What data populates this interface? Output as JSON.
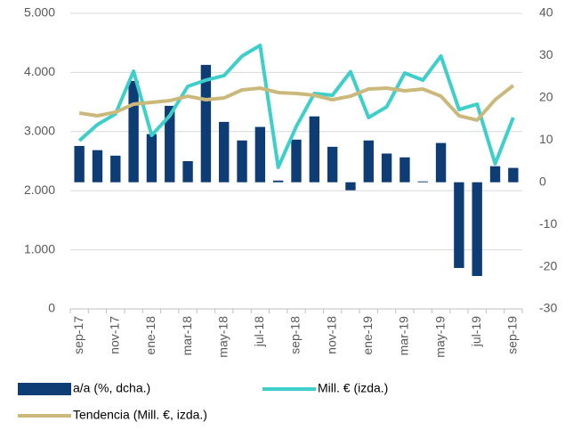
{
  "chart_data": {
    "type": "bar-line",
    "categories": [
      "sep-17",
      null,
      "nov-17",
      null,
      "ene-18",
      null,
      "mar-18",
      null,
      "may-18",
      null,
      "jul-18",
      null,
      "sep-18",
      null,
      "nov-18",
      null,
      "ene-19",
      null,
      "mar-19",
      null,
      "may-19",
      null,
      "jul-19",
      null,
      "sep-19"
    ],
    "series": [
      {
        "name": "a/a (%, dcha.)",
        "type": "bar",
        "axis": "y2",
        "color": "#0d3d74",
        "values": [
          8.6,
          7.6,
          6.3,
          24,
          11.4,
          18.1,
          5,
          27.8,
          14.3,
          9.9,
          13.1,
          0.4,
          10.1,
          15.6,
          8.4,
          -1.9,
          9.9,
          6.8,
          5.9,
          0.2,
          9.3,
          -20.3,
          -22.2,
          3.8,
          3.4
        ]
      },
      {
        "name": "Mill. € (izda.)",
        "type": "line",
        "axis": "y",
        "color": "#3ecfcb",
        "values": [
          2846,
          3117,
          3298,
          4021,
          2937,
          3268,
          3765,
          3870,
          3946,
          4277,
          4458,
          2395,
          3087,
          3645,
          3614,
          4012,
          3238,
          3419,
          3991,
          3870,
          4277,
          3373,
          3464,
          2455,
          3238
        ]
      },
      {
        "name": "Tendencia (Mill. €, izda.)",
        "type": "line",
        "axis": "y",
        "color": "#cbb97c",
        "values": [
          3313,
          3268,
          3328,
          3464,
          3494,
          3524,
          3599,
          3539,
          3569,
          3705,
          3735,
          3660,
          3645,
          3614,
          3539,
          3599,
          3720,
          3735,
          3690,
          3720,
          3599,
          3268,
          3193,
          3539,
          3780
        ]
      }
    ],
    "ylim": [
      0,
      5000
    ],
    "yticks": [
      0,
      {
        "value": 1000,
        "label": "1.000"
      },
      {
        "value": 2000,
        "label": "2.000"
      },
      {
        "value": 3000,
        "label": "3.000"
      },
      {
        "value": 4000,
        "label": "4.000"
      },
      {
        "value": 5000,
        "label": "5.000"
      }
    ],
    "y2lim": [
      -30,
      40
    ],
    "y2ticks": [
      -30,
      -20,
      -10,
      0,
      10,
      20,
      30,
      40
    ],
    "grid": true
  }
}
